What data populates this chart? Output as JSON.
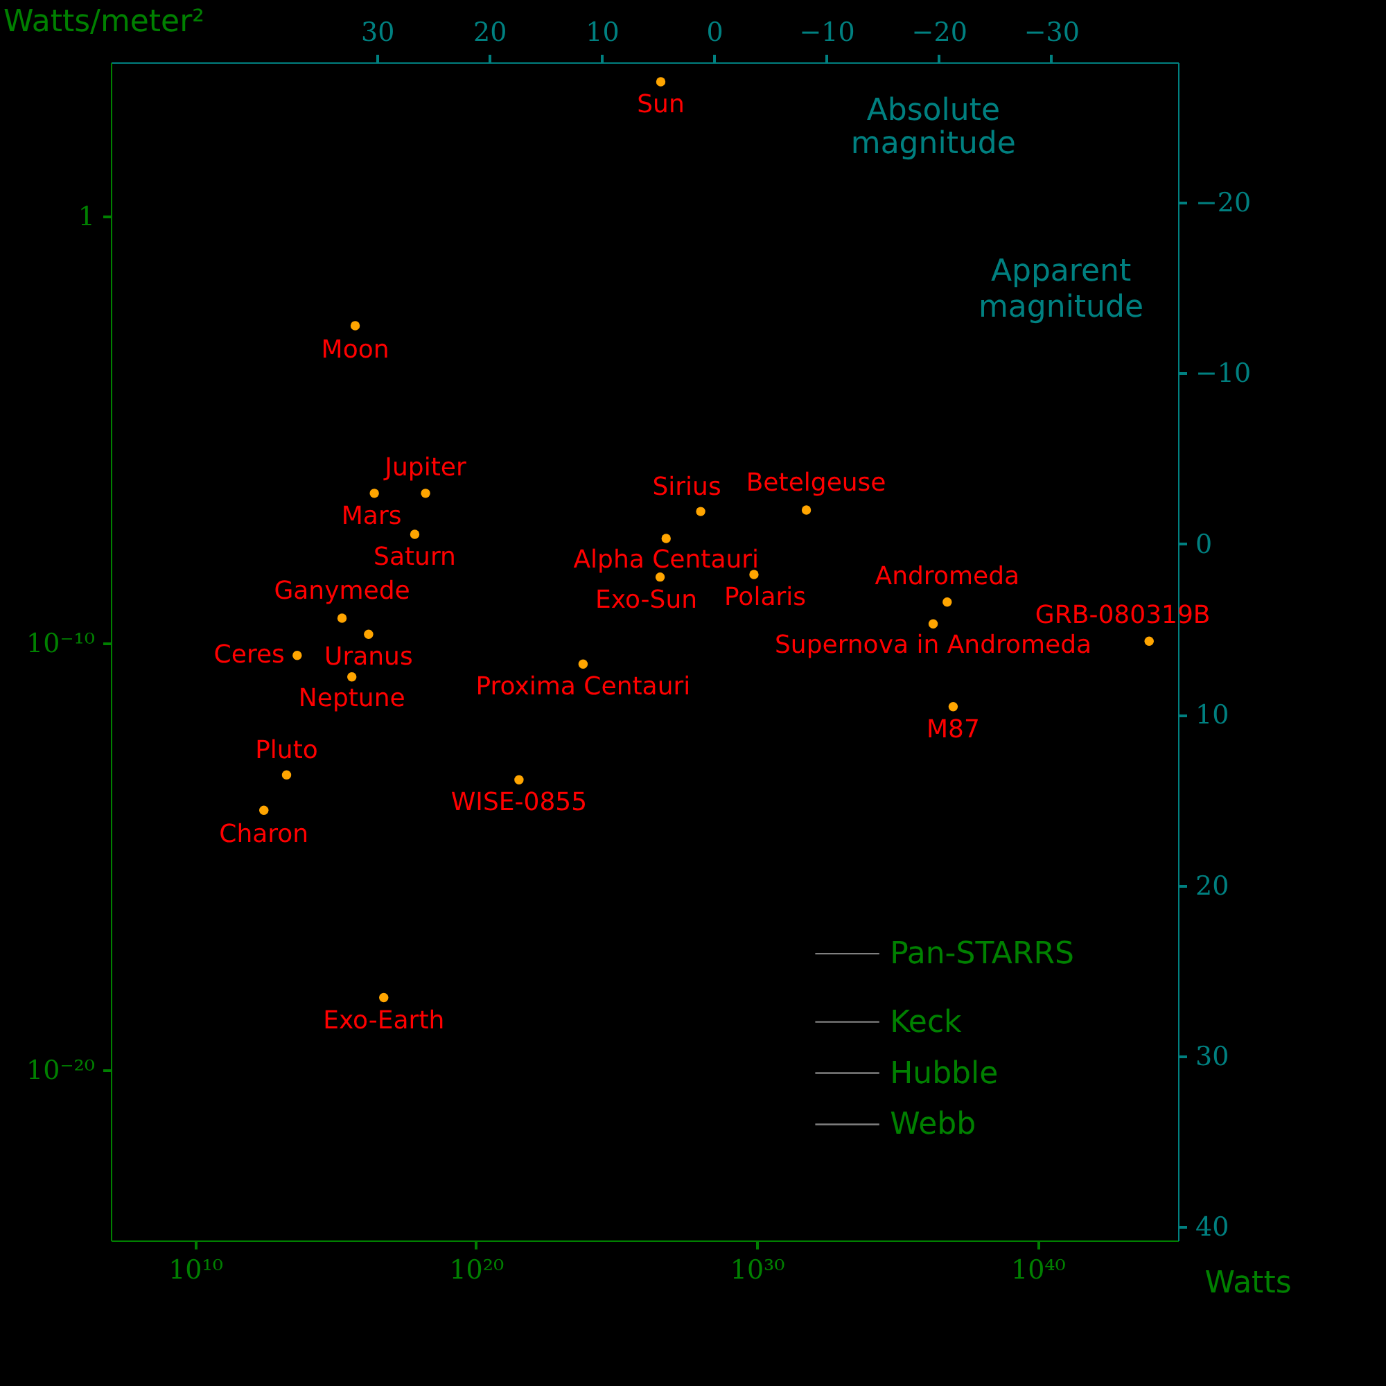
{
  "chart_data": {
    "type": "scatter",
    "xlabel": "Watts",
    "ylabel": "Watts/meter²",
    "x2label": "Absolute magnitude",
    "y2label": "Apparent magnitude",
    "log": "xy",
    "marker": "circle",
    "xlim": [
      10000000.0,
      1e+45
    ],
    "ylim": [
      1e-24,
      4000
    ],
    "xticks": [
      {
        "value": 10000000000.0,
        "label": "10¹⁰"
      },
      {
        "value": 1e+20,
        "label": "10²⁰"
      },
      {
        "value": 1e+30,
        "label": "10³⁰"
      },
      {
        "value": 1e+40,
        "label": "10⁴⁰"
      }
    ],
    "yticks": [
      1,
      {
        "value": 1e-10,
        "label": "10⁻¹⁰"
      },
      {
        "value": 1e-20,
        "label": "10⁻²⁰"
      }
    ],
    "x2lim": [
      53.7,
      -41.3
    ],
    "x2ticks": [
      30,
      20,
      10,
      0,
      {
        "value": -10,
        "label": "−10"
      },
      {
        "value": -20,
        "label": "−20"
      },
      {
        "value": -30,
        "label": "−30"
      }
    ],
    "y2lim": [
      40.8,
      -28.2
    ],
    "y2ticks": [
      {
        "value": -20,
        "label": "−20"
      },
      {
        "value": -10,
        "label": "−10"
      },
      0,
      10,
      20,
      30,
      40
    ],
    "series": [
      {
        "color": "#ffa500",
        "x": [
          3.8e+26,
          5000000000000000.0,
          1.6e+18,
          2.4e+16,
          6.6e+17,
          1700000000000000.0,
          1.5e+16,
          43000000000000.0,
          3800000000000000.0,
          18000000000000.0,
          2800000000000.0,
          5.2e+16,
          3.4e+21,
          6.5e+23,
          5.9e+26,
          3.6e+26,
          1e+28,
          5.8e+31,
          7.9e+29,
          6e+36,
          1.9e+36,
          9.3e+43,
          9.8e+36
        ],
        "values": [
          1400.0,
          0.0027,
          3.2e-07,
          3.2e-07,
          3.5e-08,
          3.8e-10,
          1.6e-10,
          5.1e-11,
          1.6e-11,
          8.1e-14,
          1.2e-14,
          4.9e-19,
          6.2e-14,
          3.2e-11,
          2.8e-08,
          3.5e-09,
          1.2e-07,
          1.3e-07,
          4e-09,
          9.1e-10,
          2.8e-10,
          1.1e-10,
          3.2e-12
        ]
      }
    ],
    "annotations": [
      {
        "text": "Sun",
        "x": 3.8e+26,
        "y": 1400.0
      },
      {
        "text": "Moon",
        "x": 5000000000000000.0,
        "y": 0.0027
      },
      {
        "text": "Jupiter",
        "x": 1.6e+18,
        "y": 3.2e-07
      },
      {
        "text": "Mars",
        "x": 2.4e+16,
        "y": 3.2e-07
      },
      {
        "text": "Saturn",
        "x": 6.6e+17,
        "y": 3.5e-08
      },
      {
        "text": "Ganymede",
        "x": 1700000000000000.0,
        "y": 3.8e-10
      },
      {
        "text": "Uranus",
        "x": 1.5e+16,
        "y": 1.6e-10
      },
      {
        "text": "Ceres",
        "x": 43000000000000.0,
        "y": 5.1e-11
      },
      {
        "text": "Neptune",
        "x": 3800000000000000.0,
        "y": 1.6e-11
      },
      {
        "text": "Pluto",
        "x": 18000000000000.0,
        "y": 8.1e-14
      },
      {
        "text": "Charon",
        "x": 2800000000000.0,
        "y": 1.2e-14
      },
      {
        "text": "Exo-Earth",
        "x": 5.2e+16,
        "y": 4.9e-19
      },
      {
        "text": "WISE-0855",
        "x": 3.4e+21,
        "y": 6.2e-14
      },
      {
        "text": "Proxima Centauri",
        "x": 6.5e+23,
        "y": 3.2e-11
      },
      {
        "text": "Alpha Centauri",
        "x": 5.9e+26,
        "y": 2.8e-08
      },
      {
        "text": "Exo-Sun",
        "x": 3.6e+26,
        "y": 3.5e-09
      },
      {
        "text": "Sirius",
        "x": 1e+28,
        "y": 1.2e-07
      },
      {
        "text": "Betelgeuse",
        "x": 5.8e+31,
        "y": 1.3e-07
      },
      {
        "text": "Polaris",
        "x": 7.9e+29,
        "y": 4e-09
      },
      {
        "text": "Andromeda",
        "x": 6e+36,
        "y": 9.1e-10
      },
      {
        "text": "Supernova in Andromeda",
        "x": 1.9e+36,
        "y": 2.8e-10
      },
      {
        "text": "GRB-080319B",
        "x": 9.3e+43,
        "y": 1.1e-10
      },
      {
        "text": "M87",
        "x": 9.8e+36,
        "y": 3.2e-12
      }
    ],
    "ref_lines": [
      {
        "axis": "y2",
        "value": 24,
        "label": "Pan-STARRS",
        "color": "#808080"
      },
      {
        "axis": "y2",
        "value": 28,
        "label": "Keck",
        "color": "#808080"
      },
      {
        "axis": "y2",
        "value": 31,
        "label": "Hubble",
        "color": "#808080"
      },
      {
        "axis": "y2",
        "value": 34,
        "label": "Webb",
        "color": "#808080"
      }
    ]
  }
}
